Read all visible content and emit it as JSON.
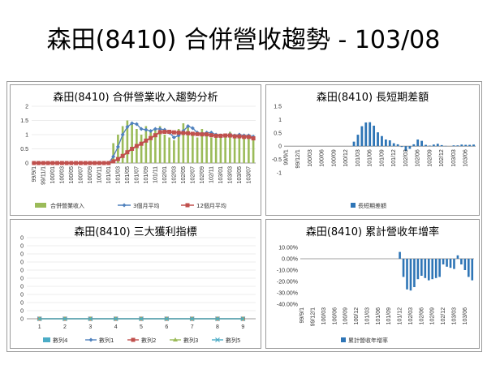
{
  "page": {
    "title": "森田(8410) 合併營收趨勢 - 103/08"
  },
  "colors": {
    "green": "#9bbb59",
    "blue": "#4f81bd",
    "red": "#c0504d",
    "dark_blue": "#2e75b6",
    "cyan": "#4bacc6",
    "gray": "#808080",
    "grid": "#d9d9d9"
  },
  "months": [
    "99/9/1",
    "99/10/1",
    "99/11/1",
    "99/12/1",
    "100/01",
    "100/02",
    "100/03",
    "100/04",
    "100/05",
    "100/06",
    "100/07",
    "100/08",
    "100/09",
    "100/10",
    "100/11",
    "100/12",
    "101/01",
    "101/02",
    "101/03",
    "101/04",
    "101/05",
    "101/06",
    "101/07",
    "101/08",
    "101/09",
    "101/10",
    "101/11",
    "101/12",
    "102/01",
    "102/02",
    "102/03",
    "102/04",
    "102/05",
    "102/06",
    "102/07",
    "102/08",
    "102/09",
    "102/10",
    "102/11",
    "102/12",
    "103/01",
    "103/02",
    "103/03",
    "103/04",
    "103/05",
    "103/06",
    "103/07",
    "103/08"
  ],
  "chart_data": [
    {
      "type": "bar",
      "title": "森田(8410) 合併營業收入趨勢分析",
      "ylim": [
        0,
        2
      ],
      "yticks": [
        "0",
        "0.5",
        "1",
        "1.5",
        "2"
      ],
      "series": [
        {
          "name": "合併營業收入",
          "type": "bar",
          "values": [
            0,
            0,
            0,
            0,
            0,
            0,
            0,
            0,
            0,
            0,
            0,
            0,
            0,
            0,
            0,
            0,
            0,
            0.7,
            1.0,
            1.3,
            1.5,
            1.4,
            1.2,
            1.0,
            1.3,
            1.1,
            1.2,
            1.3,
            1.0,
            0.9,
            0.8,
            1.2,
            1.4,
            1.3,
            1.0,
            0.9,
            1.2,
            1.1,
            0.9,
            1.0,
            1.0,
            0.9,
            1.1,
            0.9,
            1.0,
            1.0,
            0.9,
            0.9
          ]
        },
        {
          "name": "3個月平均",
          "type": "line",
          "values": [
            0,
            0,
            0,
            0,
            0,
            0,
            0,
            0,
            0,
            0,
            0,
            0,
            0,
            0,
            0,
            0,
            0,
            0.23,
            0.57,
            1.0,
            1.27,
            1.4,
            1.37,
            1.2,
            1.17,
            1.13,
            1.2,
            1.2,
            1.17,
            1.07,
            0.9,
            0.97,
            1.13,
            1.3,
            1.23,
            1.07,
            1.03,
            1.07,
            1.07,
            1.0,
            0.97,
            0.97,
            1.0,
            0.97,
            1.0,
            0.97,
            0.97,
            0.93
          ]
        },
        {
          "name": "12個月平均",
          "type": "line",
          "values": [
            0,
            0,
            0,
            0,
            0,
            0,
            0,
            0,
            0,
            0,
            0,
            0,
            0,
            0,
            0,
            0,
            0,
            0.06,
            0.14,
            0.25,
            0.38,
            0.5,
            0.6,
            0.68,
            0.79,
            0.88,
            0.98,
            1.09,
            1.1,
            1.1,
            1.08,
            1.07,
            1.06,
            1.05,
            1.03,
            1.02,
            1.01,
            1.01,
            0.98,
            0.96,
            0.96,
            0.97,
            0.97,
            0.94,
            0.94,
            0.92,
            0.92,
            0.87
          ]
        }
      ]
    },
    {
      "type": "bar",
      "title": "森田(8410) 長短期差額",
      "ylim": [
        -1,
        1.5
      ],
      "yticks": [
        "-1",
        "-0.5",
        "0",
        "0.5",
        "1",
        "1.5"
      ],
      "series": [
        {
          "name": "長短期差額",
          "values": [
            0,
            0,
            0,
            0,
            0,
            0,
            0,
            0,
            0,
            0,
            0,
            0,
            0,
            0,
            0,
            0,
            0,
            0.17,
            0.43,
            0.75,
            0.89,
            0.9,
            0.77,
            0.52,
            0.38,
            0.25,
            0.22,
            0.11,
            0.07,
            -0.03,
            -0.18,
            -0.1,
            0.07,
            0.25,
            0.2,
            0.05,
            0.02,
            0.06,
            0.09,
            0.04,
            0.01,
            0,
            0.03,
            0.03,
            0.06,
            0.05,
            0.05,
            0.06
          ]
        }
      ]
    },
    {
      "type": "line",
      "title": "森田(8410) 三大獲利指標",
      "categories": [
        "1",
        "2",
        "3",
        "4",
        "5",
        "6",
        "7",
        "8",
        "9"
      ],
      "series": [
        {
          "name": "數列4",
          "values": [
            0,
            0,
            0,
            0,
            0,
            0,
            0,
            0,
            0
          ]
        },
        {
          "name": "數列1",
          "values": [
            0,
            0,
            0,
            0,
            0,
            0,
            0,
            0,
            0
          ]
        },
        {
          "name": "數列2",
          "values": [
            0,
            0,
            0,
            0,
            0,
            0,
            0,
            0,
            0
          ]
        },
        {
          "name": "數列3",
          "values": [
            0,
            0,
            0,
            0,
            0,
            0,
            0,
            0,
            0
          ]
        },
        {
          "name": "數列5",
          "values": [
            0,
            0,
            0,
            0,
            0,
            0,
            0,
            0,
            0
          ]
        }
      ]
    },
    {
      "type": "bar",
      "title": "森田(8410) 累計營收年增率",
      "ylim": [
        -40,
        10
      ],
      "yticks": [
        "-40.00%",
        "-30.00%",
        "-20.00%",
        "-10.00%",
        "0.00%",
        "10.00%"
      ],
      "series": [
        {
          "name": "累計營收年增率",
          "values": [
            0,
            0,
            0,
            0,
            0,
            0,
            0,
            0,
            0,
            0,
            0,
            0,
            0,
            0,
            0,
            0,
            0,
            0,
            0,
            0,
            0,
            0,
            0,
            0,
            0,
            0,
            0,
            6,
            -16,
            -27,
            -28,
            -25,
            -18,
            -15,
            -17,
            -19,
            -18,
            -17,
            -16,
            -5,
            -7,
            -8,
            -9,
            3,
            -5,
            -10,
            -16,
            -19
          ]
        }
      ]
    }
  ]
}
